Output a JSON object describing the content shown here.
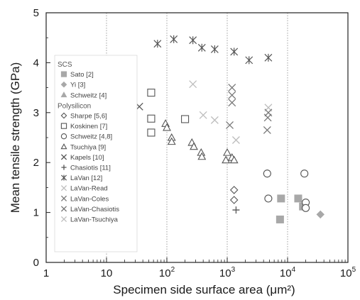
{
  "chart_data": {
    "type": "scatter",
    "title": "",
    "xlabel": "Specimen side surface area (μm²)",
    "ylabel": "Mean tensile strength (GPa)",
    "x_scale": "log",
    "xlim": [
      1,
      100000
    ],
    "ylim": [
      0,
      5
    ],
    "x_ticks": [
      {
        "value": 1,
        "base": "1",
        "exp": ""
      },
      {
        "value": 10,
        "base": "10",
        "exp": ""
      },
      {
        "value": 100,
        "base": "10",
        "exp": "2"
      },
      {
        "value": 1000,
        "base": "10",
        "exp": "3"
      },
      {
        "value": 10000,
        "base": "10",
        "exp": "4"
      },
      {
        "value": 100000,
        "base": "10",
        "exp": "5"
      }
    ],
    "y_ticks": [
      "0",
      "1",
      "2",
      "3",
      "4",
      "5"
    ],
    "grid": "vertical dotted at decades",
    "legend_position": "left",
    "legend_groups": [
      {
        "heading": "SCS",
        "entries": [
          "Sato [2]",
          "Yi [3]",
          "Schweitz [4]"
        ]
      },
      {
        "heading": "Polysilicon",
        "entries": [
          "Sharpe [5,6]",
          "Koskinen [7]",
          "Schweitz [4,8]",
          "Tsuchiya [9]",
          "Kapels [10]",
          "Chasiotis [11]",
          "LaVan [12]",
          "LaVan-Read",
          "LaVan-Coles",
          "LaVan-Chasiotis",
          "LaVan-Tsuchiya"
        ]
      }
    ],
    "series": [
      {
        "name": "Sato [2]",
        "marker": "square-filled",
        "color": "#a8a8a8",
        "points": [
          [
            7800,
            1.28
          ],
          [
            7500,
            0.86
          ],
          [
            15000,
            1.28
          ],
          [
            18000,
            1.12
          ]
        ]
      },
      {
        "name": "Yi [3]",
        "marker": "diamond-filled",
        "color": "#a8a8a8",
        "points": [
          [
            35000,
            0.96
          ]
        ]
      },
      {
        "name": "Schweitz [4]",
        "marker": "triangle-filled",
        "color": "#a8a8a8",
        "points": []
      },
      {
        "name": "Sharpe [5,6]",
        "marker": "diamond-open",
        "color": "#555555",
        "points": [
          [
            1300,
            1.45
          ],
          [
            1300,
            1.25
          ],
          [
            4600,
            1.78
          ]
        ]
      },
      {
        "name": "Koskinen [7]",
        "marker": "square-open",
        "color": "#555555",
        "points": [
          [
            55,
            3.4
          ],
          [
            55,
            2.88
          ],
          [
            55,
            2.6
          ],
          [
            200,
            2.87
          ]
        ]
      },
      {
        "name": "Schweitz [4,8]",
        "marker": "circle-open",
        "color": "#555555",
        "points": [
          [
            4600,
            1.78
          ],
          [
            4800,
            1.28
          ],
          [
            19000,
            1.78
          ],
          [
            20000,
            1.2
          ],
          [
            20000,
            1.09
          ]
        ]
      },
      {
        "name": "Tsuchiya [9]",
        "marker": "triangle-open",
        "color": "#555555",
        "points": [
          [
            95,
            2.78
          ],
          [
            100,
            2.7
          ],
          [
            120,
            2.5
          ],
          [
            120,
            2.42
          ],
          [
            260,
            2.4
          ],
          [
            280,
            2.32
          ],
          [
            370,
            2.2
          ],
          [
            380,
            2.12
          ],
          [
            1000,
            2.2
          ],
          [
            950,
            2.05
          ],
          [
            1200,
            2.1
          ],
          [
            1300,
            2.05
          ]
        ]
      },
      {
        "name": "Kapels [10]",
        "marker": "x",
        "color": "#555555",
        "points": [
          [
            35,
            3.12
          ]
        ]
      },
      {
        "name": "Chasiotis [11]",
        "marker": "plus",
        "color": "#555555",
        "points": [
          [
            1400,
            1.05
          ]
        ]
      },
      {
        "name": "LaVan [12]",
        "marker": "asterisk",
        "color": "#555555",
        "points": [
          [
            70,
            4.38
          ],
          [
            130,
            4.47
          ],
          [
            270,
            4.45
          ],
          [
            380,
            4.3
          ],
          [
            620,
            4.27
          ],
          [
            1300,
            4.22
          ],
          [
            2300,
            4.05
          ],
          [
            4800,
            4.1
          ]
        ]
      },
      {
        "name": "LaVan-Read",
        "marker": "x",
        "color": "#bdbdbd",
        "points": [
          [
            270,
            3.57
          ],
          [
            1400,
            2.45
          ],
          [
            4800,
            3.1
          ]
        ]
      },
      {
        "name": "LaVan-Coles",
        "marker": "x",
        "color": "#777777",
        "points": [
          [
            1100,
            2.75
          ],
          [
            4600,
            2.65
          ],
          [
            4800,
            3.0
          ],
          [
            4700,
            2.9
          ]
        ]
      },
      {
        "name": "LaVan-Chasiotis",
        "marker": "x",
        "color": "#777777",
        "points": [
          [
            1200,
            3.5
          ],
          [
            1200,
            3.35
          ],
          [
            1200,
            3.2
          ]
        ]
      },
      {
        "name": "LaVan-Tsuchiya",
        "marker": "x",
        "color": "#bdbdbd",
        "points": [
          [
            400,
            2.95
          ],
          [
            620,
            2.85
          ]
        ]
      }
    ]
  }
}
